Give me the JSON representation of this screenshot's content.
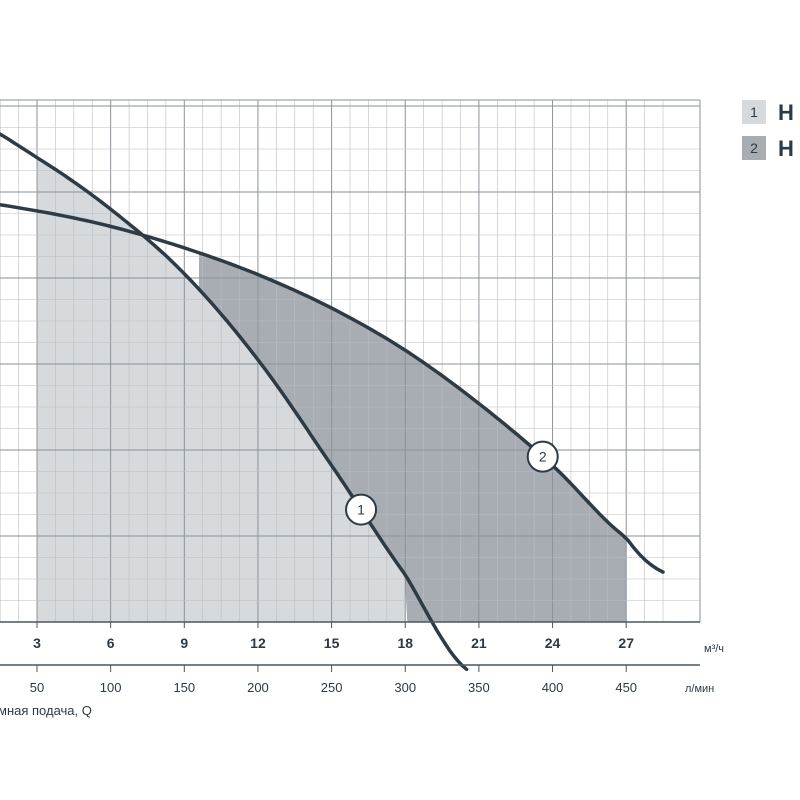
{
  "chart_data": {
    "type": "line",
    "xlabel": "мная подача, Q",
    "x_unit_primary": "м³/ч",
    "x_unit_secondary": "л/мин",
    "x_ticks_primary": [
      3,
      6,
      9,
      12,
      15,
      18,
      21,
      24,
      27
    ],
    "x_ticks_secondary": [
      50,
      100,
      150,
      200,
      250,
      300,
      350,
      400,
      450
    ],
    "xlim": [
      0,
      28.5
    ],
    "ylim": [
      0,
      7
    ],
    "grid": true,
    "legend_position": "top-right",
    "series": [
      {
        "name": "H",
        "marker": "1",
        "color": "#2e3b44",
        "operating_range": [
          3,
          18
        ],
        "fill_color": "#d7dadd",
        "x": [
          0,
          3,
          6,
          9,
          12,
          15,
          18,
          20.5
        ],
        "y": [
          5.87,
          5.4,
          4.8,
          4.05,
          3.05,
          1.82,
          0.55,
          -0.55
        ]
      },
      {
        "name": "H",
        "marker": "2",
        "color": "#2e3b44",
        "operating_range": [
          18,
          27
        ],
        "fill_color": "#a8adb3",
        "x": [
          0,
          3,
          6,
          9,
          12,
          15,
          18,
          21,
          24,
          27,
          28.5
        ],
        "y": [
          4.9,
          4.78,
          4.6,
          4.35,
          4.04,
          3.65,
          3.16,
          2.54,
          1.82,
          0.98,
          0.58
        ]
      }
    ]
  }
}
